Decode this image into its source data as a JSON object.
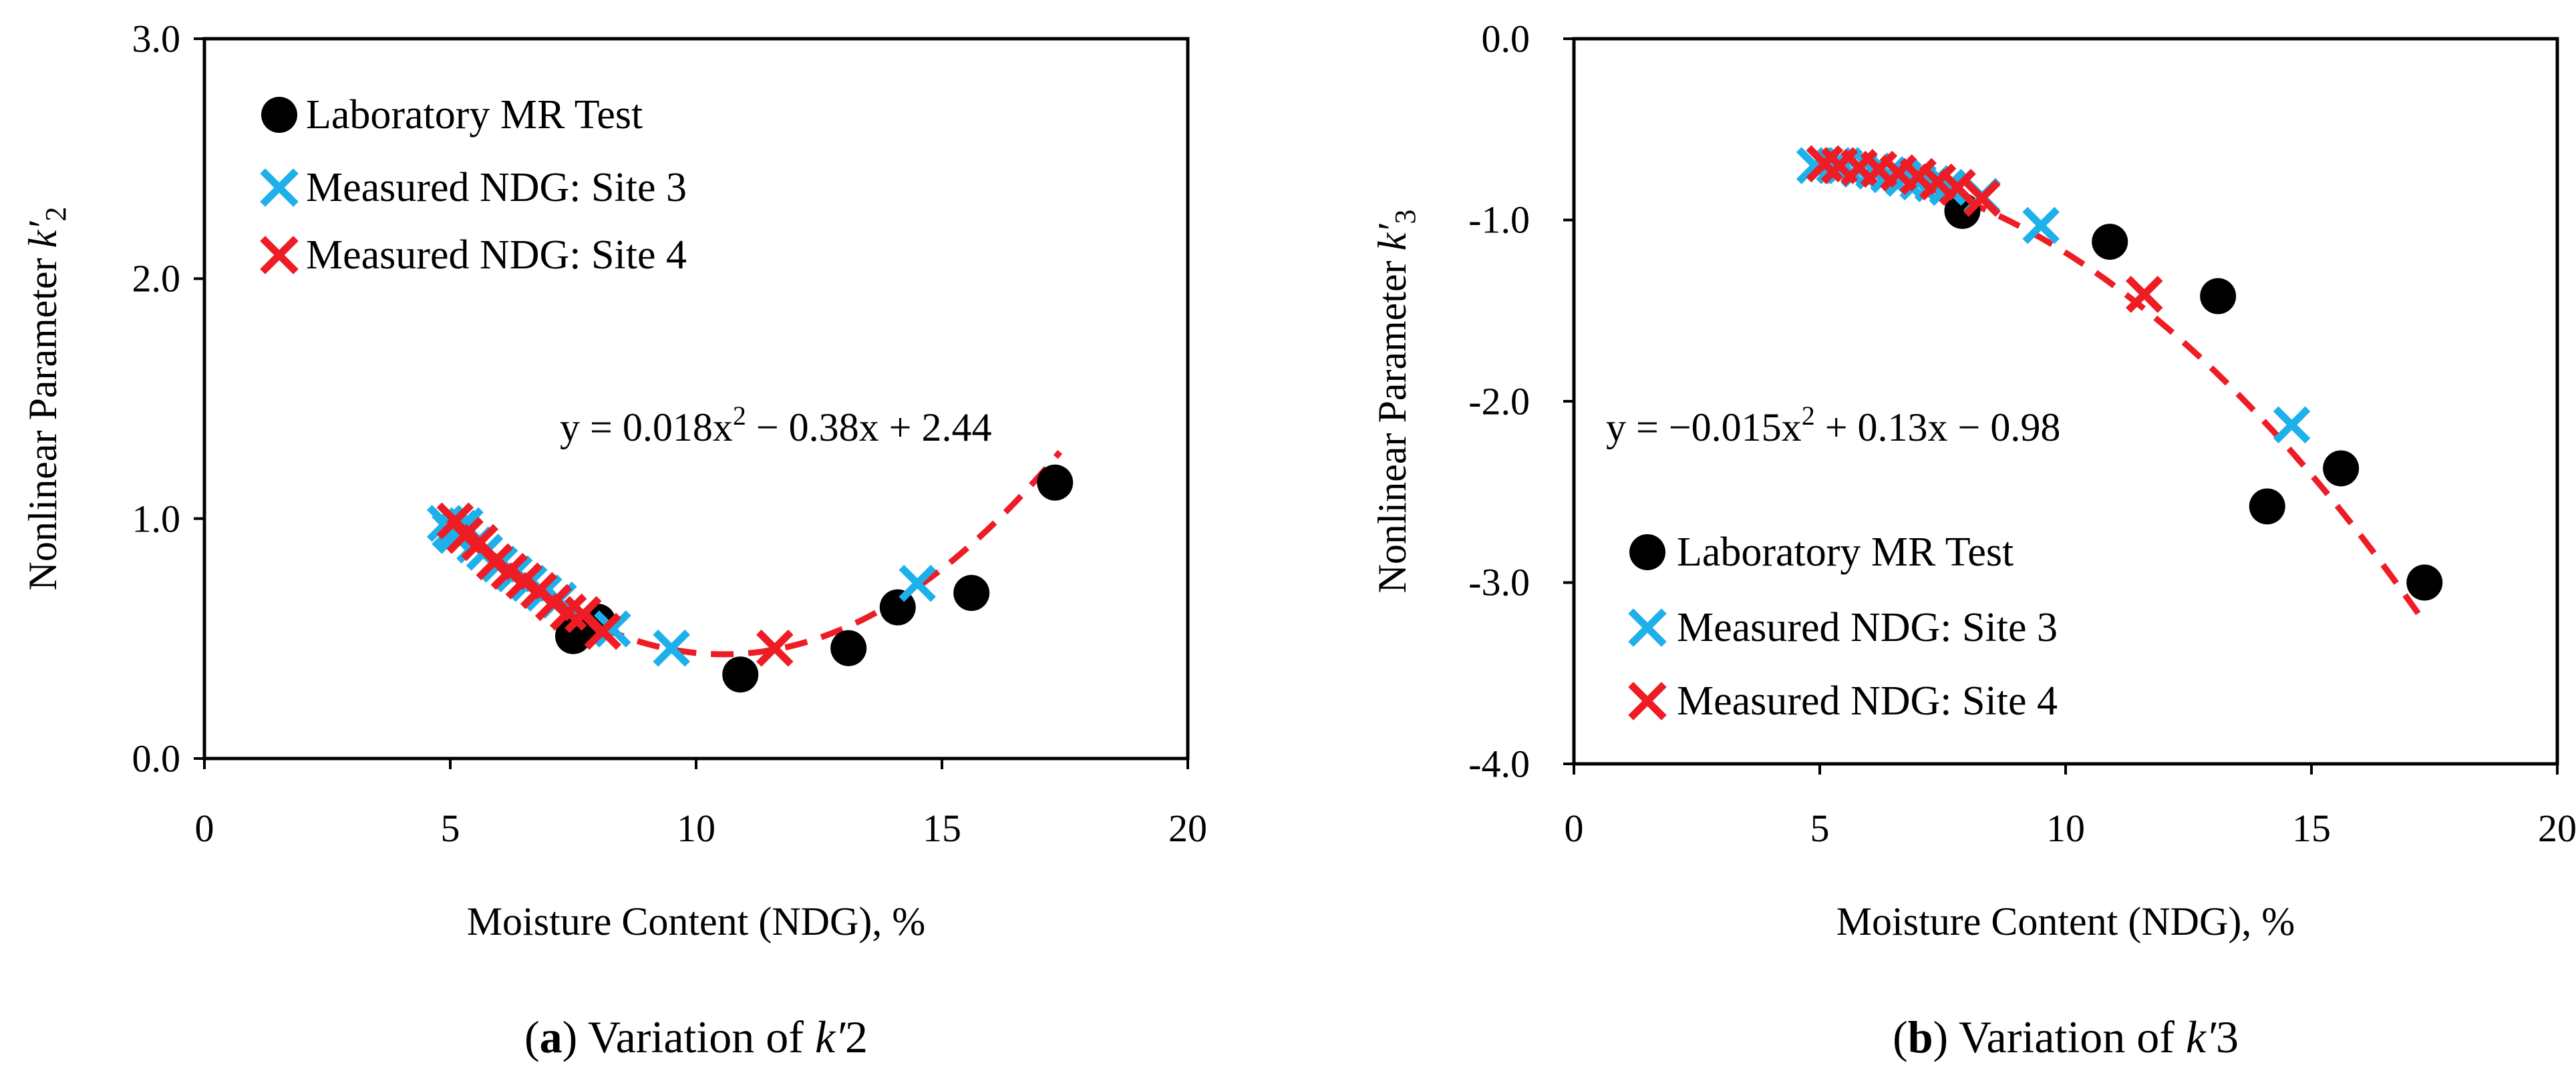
{
  "chart_data": [
    {
      "id": "a",
      "type": "scatter",
      "xlabel": "Moisture Content (NDG), %",
      "ylabel": {
        "prefix": "Nonlinear Parameter ",
        "symbol": "k′",
        "subscript": "2"
      },
      "xlim": [
        0,
        20
      ],
      "ylim": [
        0,
        3
      ],
      "xticks": [
        "0",
        "5",
        "10",
        "15",
        "20"
      ],
      "yticks": [
        "0.0",
        "1.0",
        "2.0",
        "3.0"
      ],
      "legend_position": "top-left",
      "equation": {
        "text": "y = 0.018x",
        "sup": "2",
        "rest": " − 0.38x + 2.44"
      },
      "fit": {
        "a": 0.018,
        "b": -0.38,
        "c": 2.44,
        "x_from": 5,
        "x_to": 17.4,
        "color": "#ee1c25"
      },
      "series": [
        {
          "name": "Laboratory MR Test",
          "marker": "circle",
          "color": "#000000",
          "points": [
            [
              7.5,
              0.51
            ],
            [
              8.0,
              0.57
            ],
            [
              10.9,
              0.35
            ],
            [
              13.1,
              0.46
            ],
            [
              14.1,
              0.63
            ],
            [
              15.6,
              0.69
            ],
            [
              17.3,
              1.15
            ]
          ]
        },
        {
          "name": "Measured NDG: Site 3",
          "marker": "x",
          "color": "#1eb0ea",
          "points": [
            [
              4.9,
              0.98
            ],
            [
              5.0,
              0.95
            ],
            [
              5.1,
              0.93
            ],
            [
              5.2,
              0.96
            ],
            [
              5.3,
              0.97
            ],
            [
              5.5,
              0.89
            ],
            [
              5.7,
              0.86
            ],
            [
              6.0,
              0.81
            ],
            [
              6.3,
              0.77
            ],
            [
              6.6,
              0.73
            ],
            [
              6.9,
              0.69
            ],
            [
              7.2,
              0.66
            ],
            [
              8.3,
              0.54
            ],
            [
              9.5,
              0.46
            ],
            [
              14.5,
              0.73
            ]
          ]
        },
        {
          "name": "Measured NDG: Site 4",
          "marker": "x",
          "color": "#ee1c25",
          "points": [
            [
              5.1,
              0.99
            ],
            [
              5.3,
              0.93
            ],
            [
              5.6,
              0.9
            ],
            [
              5.9,
              0.82
            ],
            [
              6.2,
              0.78
            ],
            [
              6.5,
              0.74
            ],
            [
              6.8,
              0.7
            ],
            [
              7.1,
              0.65
            ],
            [
              7.4,
              0.61
            ],
            [
              7.7,
              0.6
            ],
            [
              8.1,
              0.53
            ],
            [
              11.6,
              0.46
            ]
          ]
        }
      ],
      "caption": {
        "letter": "a",
        "text": " Variation of ",
        "symbol": "k′",
        "subscript": "2"
      }
    },
    {
      "id": "b",
      "type": "scatter",
      "xlabel": "Moisture Content (NDG), %",
      "ylabel": {
        "prefix": "Nonlinear Parameter ",
        "symbol": "k′",
        "subscript": "3"
      },
      "xlim": [
        0,
        20
      ],
      "ylim": [
        -4,
        0
      ],
      "xticks": [
        "0",
        "5",
        "10",
        "15",
        "20"
      ],
      "yticks": [
        "-4.0",
        "-3.0",
        "-2.0",
        "-1.0",
        "0.0"
      ],
      "legend_position": "bottom-left",
      "equation": {
        "text": "y = −0.015x",
        "sup": "2",
        "rest": " + 0.13x − 0.98"
      },
      "fit": {
        "a": -0.015,
        "b": 0.13,
        "c": -0.98,
        "x_from": 5,
        "x_to": 17.3,
        "color": "#ee1c25"
      },
      "series": [
        {
          "name": "Laboratory MR Test",
          "marker": "circle",
          "color": "#000000",
          "points": [
            [
              7.9,
              -0.95
            ],
            [
              10.9,
              -1.12
            ],
            [
              13.1,
              -1.42
            ],
            [
              14.1,
              -2.58
            ],
            [
              15.6,
              -2.37
            ],
            [
              17.3,
              -3.0
            ]
          ]
        },
        {
          "name": "Measured NDG: Site 3",
          "marker": "x",
          "color": "#1eb0ea",
          "points": [
            [
              4.9,
              -0.7
            ],
            [
              5.1,
              -0.69
            ],
            [
              5.3,
              -0.7
            ],
            [
              5.5,
              -0.7
            ],
            [
              5.8,
              -0.72
            ],
            [
              6.1,
              -0.73
            ],
            [
              6.4,
              -0.75
            ],
            [
              6.7,
              -0.77
            ],
            [
              7.0,
              -0.79
            ],
            [
              7.3,
              -0.8
            ],
            [
              7.6,
              -0.82
            ],
            [
              8.3,
              -0.87
            ],
            [
              9.5,
              -1.03
            ],
            [
              14.6,
              -2.13
            ]
          ]
        },
        {
          "name": "Measured NDG: Site 4",
          "marker": "x",
          "color": "#ee1c25",
          "points": [
            [
              5.1,
              -0.69
            ],
            [
              5.4,
              -0.7
            ],
            [
              5.8,
              -0.71
            ],
            [
              6.2,
              -0.72
            ],
            [
              6.6,
              -0.74
            ],
            [
              7.0,
              -0.76
            ],
            [
              7.4,
              -0.79
            ],
            [
              7.8,
              -0.82
            ],
            [
              8.3,
              -0.88
            ],
            [
              11.6,
              -1.41
            ]
          ]
        }
      ],
      "caption": {
        "letter": "b",
        "text": " Variation of ",
        "symbol": "k′",
        "subscript": "3"
      }
    }
  ]
}
